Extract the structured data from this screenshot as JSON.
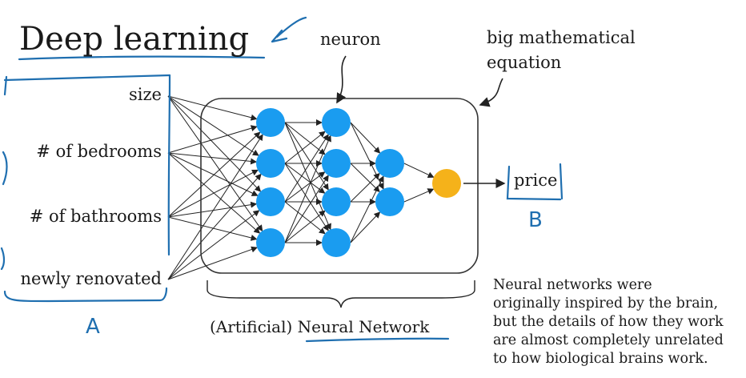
{
  "title": "Deep learning",
  "labels": {
    "neuron": "neuron",
    "equation_line1": "big mathematical",
    "equation_line2": "equation",
    "output": "price",
    "network": "(Artificial) Neural Network"
  },
  "inputs": [
    "size",
    "# of bedrooms",
    "# of bathrooms",
    "newly renovated"
  ],
  "handwritten": {
    "input_letter": "A",
    "output_letter": "B"
  },
  "note_lines": [
    "Neural networks were",
    "originally inspired by the brain,",
    "but the details of how they work",
    "are almost completely unrelated",
    "to how biological brains work."
  ],
  "colors": {
    "neuron": "#1a9cf0",
    "output_neuron": "#f5b21a",
    "ink": "#1f6fb0",
    "line": "#222222"
  }
}
